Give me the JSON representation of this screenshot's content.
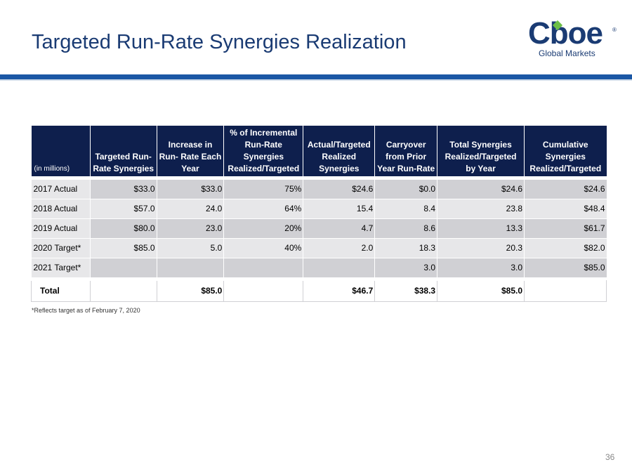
{
  "title": "Targeted Run-Rate Synergies Realization",
  "logo": {
    "word": "Cboe",
    "registered": "®",
    "sub": "Global Markets",
    "color": "#1a3b73",
    "accent": "#6cbe45"
  },
  "table": {
    "headers": [
      "(in millions)",
      "Targeted Run-Rate Synergies",
      "Increase in Run- Rate Each Year",
      "% of Incremental Run-Rate Synergies Realized/Targeted",
      "Actual/Targeted Realized Synergies",
      "Carryover from Prior Year Run-Rate",
      "Total Synergies Realized/Targeted by Year",
      "Cumulative Synergies Realized/Targeted"
    ],
    "rows": [
      [
        "2017 Actual",
        "$33.0",
        "$33.0",
        "75%",
        "$24.6",
        "$0.0",
        "$24.6",
        "$24.6"
      ],
      [
        "2018 Actual",
        "$57.0",
        "24.0",
        "64%",
        "15.4",
        "8.4",
        "23.8",
        "$48.4"
      ],
      [
        "2019 Actual",
        "$80.0",
        "23.0",
        "20%",
        "4.7",
        "8.6",
        "13.3",
        "$61.7"
      ],
      [
        "2020 Target*",
        "$85.0",
        "5.0",
        "40%",
        "2.0",
        "18.3",
        "20.3",
        "$82.0"
      ],
      [
        "2021 Target*",
        "",
        "",
        "",
        "",
        "3.0",
        "3.0",
        "$85.0"
      ]
    ],
    "total": [
      "Total",
      "",
      "$85.0",
      "",
      "$46.7",
      "$38.3",
      "$85.0",
      ""
    ]
  },
  "footnote": "*Reflects target as of February 7, 2020",
  "page_number": "36"
}
